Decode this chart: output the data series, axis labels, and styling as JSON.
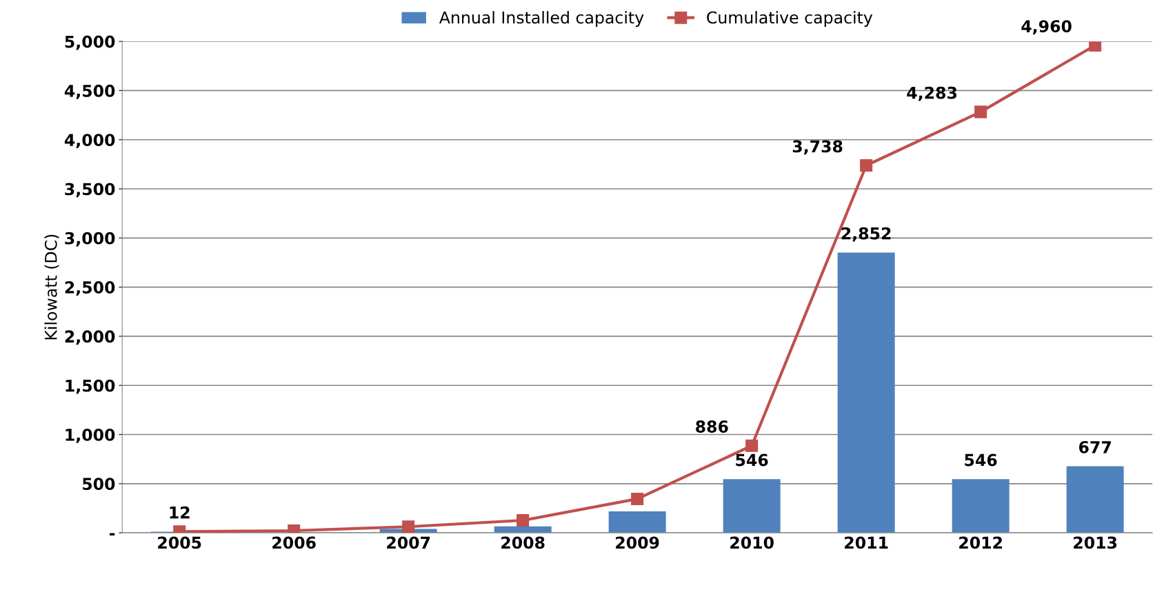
{
  "chart_data": {
    "type": "bar",
    "ylabel": "Kilowatt (DC)",
    "categories": [
      "2005",
      "2006",
      "2007",
      "2008",
      "2009",
      "2010",
      "2011",
      "2012",
      "2013"
    ],
    "series": [
      {
        "name": "Annual Installed capacity",
        "color": "#4f81bd",
        "values": [
          12,
          null,
          40,
          65,
          218,
          546,
          2852,
          546,
          677
        ],
        "value_labels": [
          "12",
          null,
          null,
          null,
          null,
          "546",
          "2,852",
          "546",
          "677"
        ]
      },
      {
        "name": "Cumulative capacity",
        "type": "line",
        "color": "#c0504d",
        "marker": "square",
        "values": [
          12,
          22,
          62,
          127,
          345,
          886,
          3738,
          4283,
          4960
        ],
        "value_labels": [
          null,
          null,
          null,
          null,
          null,
          "886",
          "3,738",
          "4,283",
          "4,960"
        ]
      }
    ],
    "ylim": [
      0,
      5000
    ],
    "yticks": [
      {
        "value": 0,
        "label": "-"
      },
      {
        "value": 500,
        "label": "500"
      },
      {
        "value": 1000,
        "label": "1,000"
      },
      {
        "value": 1500,
        "label": "1,500"
      },
      {
        "value": 2000,
        "label": "2,000"
      },
      {
        "value": 2500,
        "label": "2,500"
      },
      {
        "value": 3000,
        "label": "3,000"
      },
      {
        "value": 3500,
        "label": "3,500"
      },
      {
        "value": 4000,
        "label": "4,000"
      },
      {
        "value": 4500,
        "label": "4,500"
      },
      {
        "value": 5000,
        "label": "5,000"
      }
    ],
    "grid": "y",
    "legend": "top"
  }
}
